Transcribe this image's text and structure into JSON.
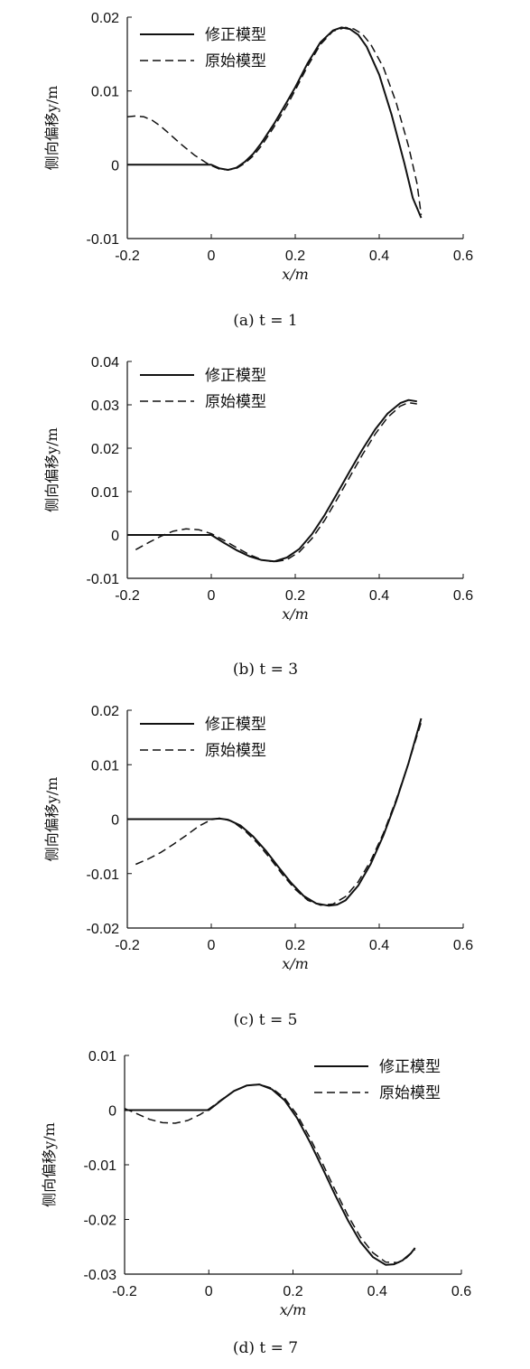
{
  "chart_data": [
    {
      "type": "line",
      "caption": "(a) t = 1",
      "xlabel": "x/m",
      "ylabel": "侧向偏移y/m",
      "xlim": [
        -0.2,
        0.6
      ],
      "ylim": [
        -0.01,
        0.02
      ],
      "xticks": [
        "-0.2",
        "0",
        "0.2",
        "0.4",
        "0.6"
      ],
      "yticks": [
        "-0.01",
        "0",
        "0.01",
        "0.02"
      ],
      "legend_position": "top-left",
      "series": [
        {
          "name": "修正模型",
          "style": "solid",
          "x": [
            -0.2,
            -0.15,
            -0.1,
            -0.05,
            0.0,
            0.02,
            0.04,
            0.06,
            0.08,
            0.1,
            0.12,
            0.15,
            0.18,
            0.2,
            0.23,
            0.26,
            0.29,
            0.31,
            0.33,
            0.35,
            0.37,
            0.4,
            0.43,
            0.46,
            0.48,
            0.5
          ],
          "y": [
            0,
            0,
            0,
            0,
            0,
            -0.0005,
            -0.0007,
            -0.0004,
            0.0004,
            0.0015,
            0.003,
            0.0056,
            0.0085,
            0.0105,
            0.0138,
            0.0166,
            0.0182,
            0.0186,
            0.0184,
            0.0176,
            0.016,
            0.0122,
            0.0067,
            0.0002,
            -0.0045,
            -0.0072
          ]
        },
        {
          "name": "原始模型",
          "style": "dashed",
          "x": [
            -0.2,
            -0.18,
            -0.16,
            -0.14,
            -0.12,
            -0.1,
            -0.07,
            -0.04,
            -0.01,
            0.0,
            0.02,
            0.04,
            0.06,
            0.08,
            0.1,
            0.12,
            0.15,
            0.18,
            0.2,
            0.23,
            0.26,
            0.29,
            0.32,
            0.34,
            0.36,
            0.38,
            0.41,
            0.44,
            0.47,
            0.49,
            0.5
          ],
          "y": [
            0.0065,
            0.0066,
            0.0065,
            0.006,
            0.0052,
            0.0042,
            0.0027,
            0.0013,
            0.0002,
            -0.0001,
            -0.0006,
            -0.0007,
            -0.0005,
            0.0002,
            0.0012,
            0.0026,
            0.0052,
            0.008,
            0.0101,
            0.0134,
            0.0163,
            0.0181,
            0.0186,
            0.0184,
            0.0177,
            0.0163,
            0.0132,
            0.0085,
            0.0025,
            -0.0025,
            -0.0068
          ]
        }
      ]
    },
    {
      "type": "line",
      "caption": "(b) t = 3",
      "xlabel": "x/m",
      "ylabel": "侧向偏移y/m",
      "xlim": [
        -0.2,
        0.6
      ],
      "ylim": [
        -0.01,
        0.04
      ],
      "xticks": [
        "-0.2",
        "0",
        "0.2",
        "0.4",
        "0.6"
      ],
      "yticks": [
        "-0.01",
        "0",
        "0.01",
        "0.02",
        "0.03",
        "0.04"
      ],
      "legend_position": "top-left",
      "series": [
        {
          "name": "修正模型",
          "style": "solid",
          "x": [
            -0.2,
            -0.15,
            -0.1,
            -0.05,
            0.0,
            0.03,
            0.06,
            0.09,
            0.12,
            0.15,
            0.18,
            0.21,
            0.24,
            0.27,
            0.3,
            0.33,
            0.36,
            0.39,
            0.42,
            0.45,
            0.47,
            0.49
          ],
          "y": [
            0,
            0,
            0,
            0,
            0,
            -0.0018,
            -0.0035,
            -0.0049,
            -0.0058,
            -0.0061,
            -0.0052,
            -0.0032,
            0.0002,
            0.0046,
            0.0096,
            0.0147,
            0.0197,
            0.0243,
            0.028,
            0.0304,
            0.0311,
            0.0308
          ]
        },
        {
          "name": "原始模型",
          "style": "dashed",
          "x": [
            -0.18,
            -0.15,
            -0.12,
            -0.09,
            -0.06,
            -0.03,
            0.0,
            0.03,
            0.06,
            0.09,
            0.12,
            0.15,
            0.18,
            0.21,
            0.24,
            0.27,
            0.3,
            0.33,
            0.36,
            0.39,
            0.42,
            0.45,
            0.47,
            0.49
          ],
          "y": [
            -0.0034,
            -0.0018,
            -0.0003,
            0.0009,
            0.0014,
            0.0012,
            0.0003,
            -0.0012,
            -0.0029,
            -0.0045,
            -0.0057,
            -0.0062,
            -0.0057,
            -0.0039,
            -0.0008,
            0.0034,
            0.0083,
            0.0134,
            0.0185,
            0.0232,
            0.0271,
            0.0297,
            0.0305,
            0.0302
          ]
        }
      ]
    },
    {
      "type": "line",
      "caption": "(c) t = 5",
      "xlabel": "x/m",
      "ylabel": "侧向偏移y/m",
      "xlim": [
        -0.2,
        0.6
      ],
      "ylim": [
        -0.02,
        0.02
      ],
      "xticks": [
        "-0.2",
        "0",
        "0.2",
        "0.4",
        "0.6"
      ],
      "yticks": [
        "-0.02",
        "-0.01",
        "0",
        "0.01",
        "0.02"
      ],
      "legend_position": "top-left",
      "series": [
        {
          "name": "修正模型",
          "style": "solid",
          "x": [
            -0.2,
            -0.15,
            -0.1,
            -0.05,
            0.0,
            0.02,
            0.04,
            0.07,
            0.1,
            0.13,
            0.16,
            0.19,
            0.22,
            0.25,
            0.28,
            0.3,
            0.32,
            0.35,
            0.38,
            0.41,
            0.44,
            0.47,
            0.5
          ],
          "y": [
            0,
            0,
            0,
            0,
            0,
            0.0001,
            -0.0001,
            -0.0012,
            -0.0032,
            -0.0058,
            -0.0088,
            -0.0117,
            -0.0141,
            -0.0155,
            -0.0159,
            -0.0157,
            -0.0149,
            -0.0122,
            -0.0082,
            -0.003,
            0.0032,
            0.0103,
            0.0185
          ]
        },
        {
          "name": "原始模型",
          "style": "dashed",
          "x": [
            -0.18,
            -0.15,
            -0.12,
            -0.09,
            -0.06,
            -0.03,
            0.0,
            0.02,
            0.05,
            0.08,
            0.11,
            0.14,
            0.17,
            0.2,
            0.23,
            0.26,
            0.29,
            0.32,
            0.35,
            0.38,
            0.41,
            0.44,
            0.47,
            0.5
          ],
          "y": [
            -0.0083,
            -0.0073,
            -0.0061,
            -0.0046,
            -0.003,
            -0.0013,
            -0.0001,
            0.0002,
            -0.0004,
            -0.0021,
            -0.0044,
            -0.0072,
            -0.0102,
            -0.0129,
            -0.0149,
            -0.0158,
            -0.0156,
            -0.0142,
            -0.0115,
            -0.0076,
            -0.0026,
            0.0035,
            0.0103,
            0.0178
          ]
        }
      ]
    },
    {
      "type": "line",
      "caption": "(d) t = 7",
      "xlabel": "x/m",
      "ylabel": "侧向偏移y/m",
      "xlim": [
        -0.2,
        0.6
      ],
      "ylim": [
        -0.03,
        0.01
      ],
      "xticks": [
        "-0.2",
        "0",
        "0.2",
        "0.4",
        "0.6"
      ],
      "yticks": [
        "-0.03",
        "-0.02",
        "-0.01",
        "0",
        "0.01"
      ],
      "legend_position": "top-right",
      "series": [
        {
          "name": "修正模型",
          "style": "solid",
          "x": [
            -0.2,
            -0.15,
            -0.1,
            -0.05,
            0.0,
            0.03,
            0.06,
            0.09,
            0.12,
            0.15,
            0.18,
            0.21,
            0.24,
            0.27,
            0.3,
            0.33,
            0.36,
            0.39,
            0.42,
            0.44,
            0.46,
            0.48,
            0.49
          ],
          "y": [
            0,
            0,
            0,
            0,
            0,
            0.0018,
            0.0035,
            0.0045,
            0.0047,
            0.0038,
            0.0018,
            -0.0015,
            -0.0058,
            -0.0106,
            -0.0155,
            -0.0201,
            -0.0241,
            -0.0269,
            -0.0283,
            -0.0282,
            -0.0275,
            -0.0262,
            -0.0252
          ]
        },
        {
          "name": "原始模型",
          "style": "dashed",
          "x": [
            -0.2,
            -0.17,
            -0.14,
            -0.11,
            -0.08,
            -0.05,
            -0.02,
            0.0,
            0.03,
            0.06,
            0.09,
            0.12,
            0.15,
            0.18,
            0.21,
            0.24,
            0.27,
            0.3,
            0.33,
            0.36,
            0.39,
            0.42,
            0.45,
            0.47,
            0.49
          ],
          "y": [
            0.0003,
            -0.0007,
            -0.0017,
            -0.0023,
            -0.0024,
            -0.0019,
            -0.0008,
            0.0002,
            0.0019,
            0.0035,
            0.0045,
            0.0047,
            0.004,
            0.0022,
            -0.0009,
            -0.005,
            -0.0097,
            -0.0146,
            -0.0192,
            -0.0232,
            -0.0261,
            -0.0278,
            -0.0279,
            -0.027,
            -0.0255
          ]
        }
      ]
    }
  ]
}
